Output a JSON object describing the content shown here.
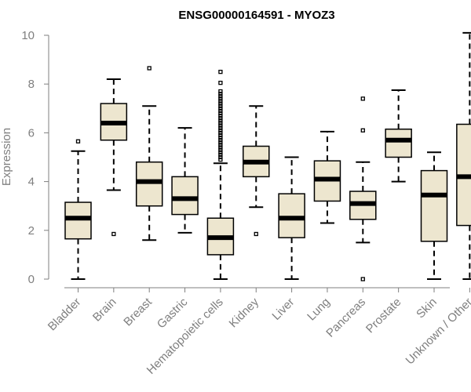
{
  "chart_data": {
    "type": "box",
    "title": "ENSG00000164591 - MYOZ3",
    "xlabel": "",
    "ylabel": "Expression",
    "ylim": [
      0,
      10
    ],
    "yticks": [
      "0",
      "2",
      "4",
      "6",
      "8",
      "10"
    ],
    "box_fill": "#ede6cf",
    "box_stroke": "#000000",
    "categories": [
      "Bladder",
      "Brain",
      "Breast",
      "Gastric",
      "Hematopoietic cells",
      "Kidney",
      "Liver",
      "Lung",
      "Pancreas",
      "Prostate",
      "Skin",
      "Unknown / Other"
    ],
    "boxes": [
      {
        "name": "Bladder",
        "min": 0.0,
        "q1": 1.65,
        "median": 2.5,
        "q3": 3.15,
        "max": 5.25,
        "outliers": [
          5.65
        ]
      },
      {
        "name": "Brain",
        "min": 3.65,
        "q1": 5.7,
        "median": 6.4,
        "q3": 7.2,
        "max": 8.2,
        "outliers": [
          1.85
        ]
      },
      {
        "name": "Breast",
        "min": 1.6,
        "q1": 3.0,
        "median": 4.0,
        "q3": 4.8,
        "max": 7.1,
        "outliers": [
          8.65
        ]
      },
      {
        "name": "Gastric",
        "min": 1.9,
        "q1": 2.65,
        "median": 3.3,
        "q3": 4.2,
        "max": 6.2,
        "outliers": []
      },
      {
        "name": "Hematopoietic cells",
        "min": 0.0,
        "q1": 1.0,
        "median": 1.7,
        "q3": 2.5,
        "max": 4.75,
        "outliers": [
          4.9,
          5.0,
          5.1,
          5.2,
          5.3,
          5.4,
          5.5,
          5.6,
          5.7,
          5.8,
          5.9,
          6.0,
          6.1,
          6.2,
          6.3,
          6.4,
          6.5,
          6.6,
          6.7,
          6.8,
          6.9,
          7.0,
          7.1,
          7.2,
          7.3,
          7.4,
          7.5,
          7.6,
          7.7,
          8.05,
          8.5
        ]
      },
      {
        "name": "Kidney",
        "min": 2.95,
        "q1": 4.2,
        "median": 4.8,
        "q3": 5.45,
        "max": 7.1,
        "outliers": [
          1.85
        ]
      },
      {
        "name": "Liver",
        "min": 0.0,
        "q1": 1.7,
        "median": 2.5,
        "q3": 3.5,
        "max": 5.0,
        "outliers": []
      },
      {
        "name": "Lung",
        "min": 2.3,
        "q1": 3.2,
        "median": 4.1,
        "q3": 4.85,
        "max": 6.05,
        "outliers": []
      },
      {
        "name": "Pancreas",
        "min": 1.5,
        "q1": 2.45,
        "median": 3.1,
        "q3": 3.6,
        "max": 4.8,
        "outliers": [
          0.0,
          6.1,
          7.4
        ]
      },
      {
        "name": "Prostate",
        "min": 4.0,
        "q1": 5.0,
        "median": 5.7,
        "q3": 6.15,
        "max": 7.75,
        "outliers": []
      },
      {
        "name": "Skin",
        "min": 0.0,
        "q1": 1.55,
        "median": 3.45,
        "q3": 4.45,
        "max": 5.2,
        "outliers": []
      },
      {
        "name": "Unknown / Other",
        "min": 0.0,
        "q1": 2.2,
        "median": 4.2,
        "q3": 6.35,
        "max": 10.1,
        "outliers": []
      }
    ]
  }
}
